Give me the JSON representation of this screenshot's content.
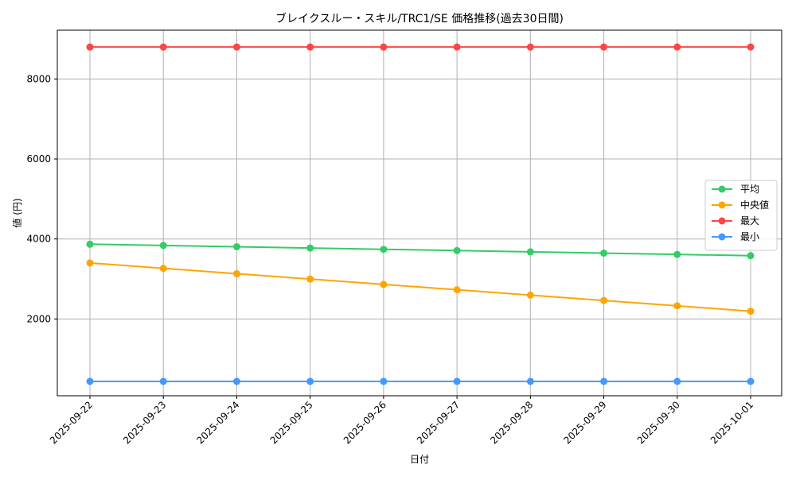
{
  "chart_data": {
    "type": "line",
    "title": "ブレイクスルー・スキル/TRC1/SE 価格推移(過去30日間)",
    "xlabel": "日付",
    "ylabel": "値 (円)",
    "categories": [
      "2025-09-22",
      "2025-09-23",
      "2025-09-24",
      "2025-09-25",
      "2025-09-26",
      "2025-09-27",
      "2025-09-28",
      "2025-09-29",
      "2025-09-30",
      "2025-10-01"
    ],
    "ylim": [
      80,
      9220
    ],
    "yticks": [
      2000,
      4000,
      6000,
      8000
    ],
    "grid": true,
    "legend_position": "center-right",
    "series": [
      {
        "name": "平均",
        "color": "#33cc66",
        "values": [
          3870,
          3838,
          3806,
          3774,
          3742,
          3710,
          3678,
          3646,
          3614,
          3582
        ]
      },
      {
        "name": "中央値",
        "color": "#ffa500",
        "values": [
          3400,
          3266,
          3132,
          2998,
          2864,
          2730,
          2596,
          2462,
          2328,
          2194
        ]
      },
      {
        "name": "最大",
        "color": "#ff4444",
        "values": [
          8800,
          8800,
          8800,
          8800,
          8800,
          8800,
          8800,
          8800,
          8800,
          8800
        ]
      },
      {
        "name": "最小",
        "color": "#4499ff",
        "values": [
          440,
          440,
          440,
          440,
          440,
          440,
          440,
          440,
          440,
          440
        ]
      }
    ]
  }
}
